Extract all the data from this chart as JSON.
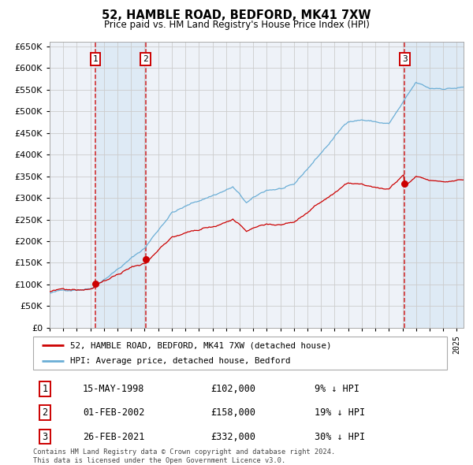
{
  "title": "52, HAMBLE ROAD, BEDFORD, MK41 7XW",
  "subtitle": "Price paid vs. HM Land Registry's House Price Index (HPI)",
  "footer": "Contains HM Land Registry data © Crown copyright and database right 2024.\nThis data is licensed under the Open Government Licence v3.0.",
  "legend_line1": "52, HAMBLE ROAD, BEDFORD, MK41 7XW (detached house)",
  "legend_line2": "HPI: Average price, detached house, Bedford",
  "transactions": [
    {
      "num": 1,
      "date": "15-MAY-1998",
      "price": 102000,
      "pct": "9%",
      "dir": "↓",
      "year": 1998.37
    },
    {
      "num": 2,
      "date": "01-FEB-2002",
      "price": 158000,
      "pct": "19%",
      "dir": "↓",
      "year": 2002.08
    },
    {
      "num": 3,
      "date": "26-FEB-2021",
      "price": 332000,
      "pct": "30%",
      "dir": "↓",
      "year": 2021.15
    }
  ],
  "hpi_color": "#6baed6",
  "price_color": "#cc0000",
  "dashed_color": "#cc0000",
  "shade_color": "#dce9f5",
  "grid_color": "#cccccc",
  "plot_bg": "#eef2f8",
  "ylim": [
    0,
    660000
  ],
  "yticks": [
    0,
    50000,
    100000,
    150000,
    200000,
    250000,
    300000,
    350000,
    400000,
    450000,
    500000,
    550000,
    600000,
    650000
  ],
  "xlim_start": 1995.0,
  "xlim_end": 2025.5
}
